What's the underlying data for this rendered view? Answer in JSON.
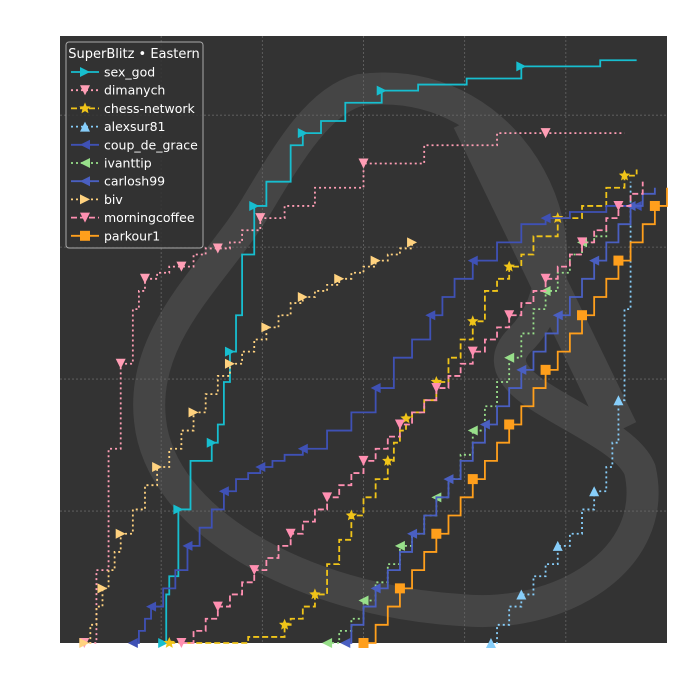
{
  "chart_data": {
    "type": "line",
    "step": true,
    "title": "",
    "xlabel": "",
    "ylabel": "",
    "xlim": [
      0,
      100
    ],
    "ylim": [
      0,
      100
    ],
    "grid": true,
    "background": "#333333",
    "grid_color": "#666666",
    "watermark": "lichess-logo",
    "legend": {
      "title": "SuperBlitz • Eastern",
      "placement": "top-left"
    },
    "series": [
      {
        "name": "sex_god",
        "color": "#17becf",
        "dash": "solid",
        "marker": "triangle-right",
        "x": [
          17,
          17.5,
          18,
          19.5,
          21,
          21.5,
          25,
          26,
          27,
          28,
          29,
          30,
          32,
          34,
          38,
          40,
          43,
          47,
          53,
          59,
          67,
          76,
          89,
          95
        ],
        "y": [
          0,
          8,
          11,
          22,
          22,
          30,
          33,
          36,
          43,
          48,
          54,
          64,
          72,
          76,
          82,
          84,
          86,
          89,
          91,
          92,
          93,
          95,
          96,
          96
        ]
      },
      {
        "name": "dimanych",
        "color": "#ff9eb5",
        "dash": "dotted",
        "marker": "triangle-down",
        "x": [
          4,
          6,
          8,
          10,
          12,
          13,
          14,
          16,
          18,
          20,
          22,
          24,
          26,
          28,
          30,
          33,
          37,
          42,
          50,
          60,
          72,
          80,
          93
        ],
        "y": [
          0,
          12,
          32,
          46,
          55,
          58,
          60,
          61,
          62,
          62,
          64,
          65,
          65,
          66,
          68,
          70,
          72,
          75,
          79,
          82,
          84,
          84,
          84
        ]
      },
      {
        "name": "chess-network",
        "color": "#f0c419",
        "dash": "dashed",
        "marker": "star",
        "x": [
          18,
          25,
          31,
          37,
          38,
          40,
          42,
          44,
          46,
          48,
          50,
          52,
          54,
          55,
          56,
          57,
          58,
          60,
          62,
          64,
          66,
          68,
          70,
          72,
          74,
          76,
          78,
          82,
          86,
          90,
          93,
          95
        ],
        "y": [
          0,
          0,
          1,
          3,
          4,
          6,
          8,
          13,
          17,
          21,
          24,
          27,
          30,
          33,
          35,
          37,
          38,
          40,
          43,
          47,
          50,
          53,
          58,
          60,
          62,
          64,
          67,
          70,
          72,
          75,
          77,
          78
        ]
      },
      {
        "name": "alexsur81",
        "color": "#87cefa",
        "dash": "dotted",
        "marker": "triangle-up",
        "x": [
          71,
          72,
          74,
          76,
          78,
          80,
          82,
          84,
          86,
          88,
          90,
          91,
          92,
          93,
          94
        ],
        "y": [
          0,
          3,
          6,
          8,
          11,
          13,
          16,
          18,
          22,
          25,
          29,
          33,
          40,
          55,
          76
        ]
      },
      {
        "name": "coup_de_grace",
        "color": "#3f51b5",
        "dash": "solid",
        "marker": "triangle-left",
        "x": [
          12,
          13,
          14,
          15,
          17,
          19,
          21,
          23,
          25,
          27,
          29,
          31,
          33,
          35,
          37,
          40,
          44,
          48,
          52,
          55,
          58,
          61,
          63,
          65,
          68,
          72,
          76,
          80,
          84,
          90,
          95
        ],
        "y": [
          0,
          2,
          4,
          6,
          9,
          12,
          16,
          19,
          22,
          25,
          27,
          28,
          29,
          30,
          31,
          32,
          35,
          38,
          42,
          47,
          50,
          54,
          57,
          60,
          63,
          66,
          69,
          70,
          71,
          72,
          72
        ]
      },
      {
        "name": "ivanttip",
        "color": "#98df8a",
        "dash": "dotted",
        "marker": "triangle-left",
        "x": [
          44,
          46,
          48,
          50,
          52,
          54,
          56,
          58,
          60,
          62,
          64,
          66,
          68,
          70,
          72,
          74,
          76,
          78,
          80,
          82,
          84,
          86,
          88,
          90
        ],
        "y": [
          0,
          2,
          4,
          7,
          10,
          13,
          16,
          18,
          21,
          24,
          27,
          31,
          35,
          39,
          43,
          47,
          51,
          55,
          58,
          61,
          64,
          66,
          67,
          68
        ]
      },
      {
        "name": "carlosh99",
        "color": "#4a5fc1",
        "dash": "solid",
        "marker": "triangle-left",
        "x": [
          47,
          48,
          50,
          52,
          54,
          56,
          58,
          60,
          62,
          64,
          66,
          68,
          70,
          72,
          74,
          76,
          78,
          80,
          82,
          84,
          86,
          88,
          90,
          92,
          94,
          96,
          98
        ],
        "y": [
          0,
          3,
          6,
          9,
          12,
          15,
          18,
          21,
          24,
          27,
          30,
          33,
          36,
          39,
          42,
          45,
          48,
          51,
          54,
          57,
          60,
          63,
          66,
          69,
          72,
          74,
          75
        ]
      },
      {
        "name": "biv",
        "color": "#ffd27f",
        "dash": "dotted",
        "marker": "triangle-right",
        "x": [
          4,
          5,
          6,
          7,
          8,
          9,
          10,
          12,
          14,
          16,
          18,
          20,
          22,
          24,
          26,
          28,
          30,
          32,
          34,
          36,
          38,
          40,
          42,
          44,
          46,
          48,
          50,
          52,
          54,
          56,
          58
        ],
        "y": [
          0,
          3,
          6,
          9,
          12,
          15,
          18,
          22,
          26,
          29,
          32,
          35,
          38,
          41,
          44,
          46,
          48,
          50,
          52,
          54,
          56,
          57,
          58,
          59,
          60,
          61,
          62,
          63,
          64,
          65,
          66
        ]
      },
      {
        "name": "morningcoffee",
        "color": "#ff8fb1",
        "dash": "dashed",
        "marker": "triangle-down",
        "x": [
          20,
          22,
          24,
          26,
          28,
          30,
          32,
          34,
          36,
          38,
          40,
          42,
          44,
          46,
          48,
          50,
          52,
          54,
          56,
          58,
          60,
          62,
          64,
          66,
          68,
          70,
          72,
          74,
          76,
          78,
          80,
          82,
          84,
          86,
          88,
          90,
          92,
          94,
          96
        ],
        "y": [
          0,
          2,
          4,
          6,
          8,
          10,
          12,
          14,
          16,
          18,
          20,
          22,
          24,
          26,
          28,
          30,
          32,
          34,
          36,
          38,
          40,
          42,
          44,
          46,
          48,
          50,
          52,
          54,
          56,
          58,
          60,
          62,
          64,
          66,
          68,
          70,
          72,
          74,
          76
        ]
      },
      {
        "name": "parkour1",
        "color": "#ff9f1c",
        "dash": "solid",
        "marker": "square",
        "x": [
          50,
          52,
          54,
          56,
          58,
          60,
          62,
          64,
          66,
          68,
          70,
          72,
          74,
          76,
          78,
          80,
          82,
          84,
          86,
          88,
          90,
          92,
          94,
          96,
          98,
          100
        ],
        "y": [
          0,
          3,
          6,
          9,
          12,
          15,
          18,
          21,
          24,
          27,
          30,
          33,
          36,
          39,
          42,
          45,
          48,
          51,
          54,
          57,
          60,
          63,
          66,
          69,
          72,
          75
        ]
      }
    ]
  }
}
